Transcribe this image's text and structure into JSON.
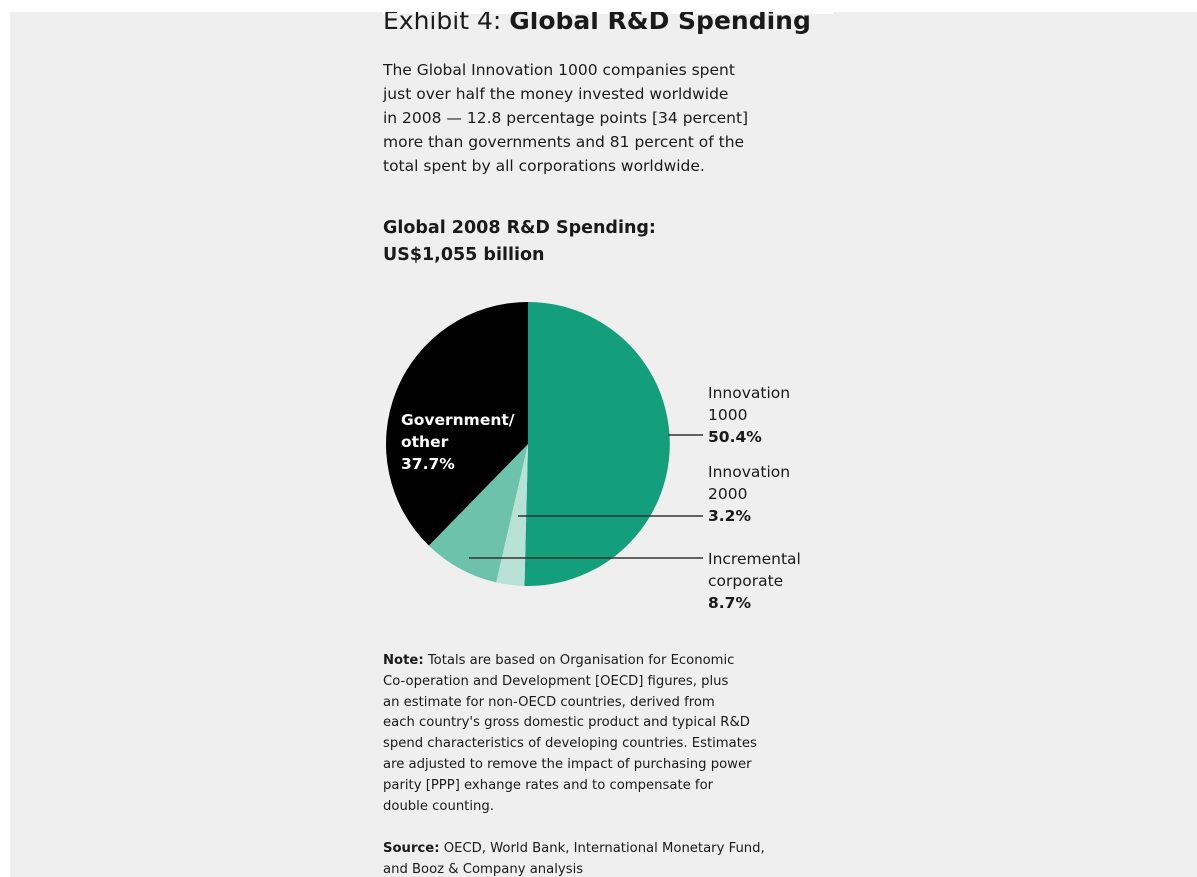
{
  "exhibit": {
    "prefix": "Exhibit 4: ",
    "title": "Global R&D Spending"
  },
  "intro": "The Global Innovation 1000 companies spent\njust over half the money invested worldwide\nin 2008 — 12.8 percentage points [34 percent]\nmore than governments and 81 percent of the\ntotal spent by all corporations worldwide.",
  "chart_data": {
    "type": "pie",
    "title": "Global 2008 R&D Spending:\nUS$1,055 billion",
    "slices": [
      {
        "label": "Innovation\n1000",
        "value": 50.4,
        "display": "50.4%",
        "color": "#139e7c"
      },
      {
        "label": "Innovation\n2000",
        "value": 3.2,
        "display": "3.2%",
        "color": "#b8e2d5"
      },
      {
        "label": "Incremental\ncorporate",
        "value": 8.7,
        "display": "8.7%",
        "color": "#6cc2aa"
      },
      {
        "label": "Government/\nother",
        "value": 37.7,
        "display": "37.7%",
        "color": "#000000"
      }
    ],
    "start_angle": "12 o'clock",
    "direction": "clockwise",
    "legend": "callout labels right of pie"
  },
  "note": {
    "lead": "Note:",
    "text": " Totals are based on Organisation for Economic\nCo-operation and Development [OECD] figures, plus\nan estimate for non-OECD countries, derived from\neach country's gross domestic product and typical R&D\nspend characteristics of developing countries. Estimates\nare adjusted to remove the impact of purchasing power\nparity [PPP] exhange rates and to compensate for\ndouble counting."
  },
  "source": {
    "lead": "Source:",
    "text": " OECD, World Bank, International Monetary Fund,\nand Booz & Company analysis"
  },
  "colors": {
    "background": "#efefef",
    "accent": "#139e7c",
    "text": "#1a1a1a"
  }
}
